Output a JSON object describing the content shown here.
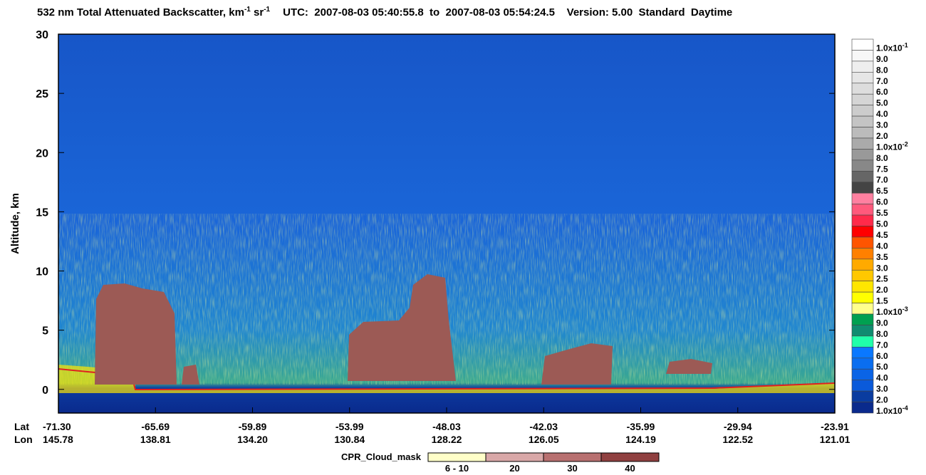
{
  "chart_data": {
    "type": "curtain",
    "title": {
      "main": "532 nm Total Attenuated Backscatter, km",
      "exp1": "-1",
      "sr": " sr",
      "exp2": "-1",
      "info": "UTC:  2007-08-03 05:40:55.8  to  2007-08-03 05:54:24.5    Version: 5.00  Standard  Daytime"
    },
    "ylabel": "Altitude, km",
    "ylim": [
      -2,
      30
    ],
    "yticks": [
      0,
      5,
      10,
      15,
      20,
      25,
      30
    ],
    "x_row_labels": [
      "Lat",
      "Lon"
    ],
    "lat_labels": [
      "-71.30",
      "-65.69",
      "-59.89",
      "-53.99",
      "-48.03",
      "-42.03",
      "-35.99",
      "-29.94",
      "-23.91"
    ],
    "lon_labels": [
      "145.78",
      "138.81",
      "134.20",
      "130.84",
      "128.22",
      "126.05",
      "124.19",
      "122.52",
      "121.01"
    ],
    "colorbar": [
      {
        "label": "1.0x10",
        "exp": "-1",
        "color": "#ffffff"
      },
      {
        "label": "9.0",
        "color": "#f7f7f7"
      },
      {
        "label": "8.0",
        "color": "#eeeeee"
      },
      {
        "label": "7.0",
        "color": "#e6e6e6"
      },
      {
        "label": "6.0",
        "color": "#dddddd"
      },
      {
        "label": "5.0",
        "color": "#d5d5d5"
      },
      {
        "label": "4.0",
        "color": "#cccccc"
      },
      {
        "label": "3.0",
        "color": "#c4c4c4"
      },
      {
        "label": "2.0",
        "color": "#bbbbbb"
      },
      {
        "label": "1.0x10",
        "exp": "-2",
        "color": "#aaaaaa"
      },
      {
        "label": "8.0",
        "color": "#999999"
      },
      {
        "label": "7.5",
        "color": "#888888"
      },
      {
        "label": "7.0",
        "color": "#666666"
      },
      {
        "label": "6.5",
        "color": "#444444"
      },
      {
        "label": "6.0",
        "color": "#ff80a0"
      },
      {
        "label": "5.5",
        "color": "#ff5a7c"
      },
      {
        "label": "5.0",
        "color": "#ff2a4a"
      },
      {
        "label": "4.5",
        "color": "#ff0000"
      },
      {
        "label": "4.0",
        "color": "#ff5500"
      },
      {
        "label": "3.5",
        "color": "#ff8000"
      },
      {
        "label": "3.0",
        "color": "#ffaa00"
      },
      {
        "label": "2.5",
        "color": "#ffc800"
      },
      {
        "label": "2.0",
        "color": "#ffe600"
      },
      {
        "label": "1.5",
        "color": "#ffff00"
      },
      {
        "label": "1.0x10",
        "exp": "-3",
        "color": "#ffff8c"
      },
      {
        "label": "9.0",
        "color": "#00a050"
      },
      {
        "label": "8.0",
        "color": "#108c70"
      },
      {
        "label": "7.0",
        "color": "#20ffaa"
      },
      {
        "label": "6.0",
        "color": "#0a78ff"
      },
      {
        "label": "5.0",
        "color": "#0a6ef0"
      },
      {
        "label": "4.0",
        "color": "#0a64e6"
      },
      {
        "label": "3.0",
        "color": "#0a5ada"
      },
      {
        "label": "2.0",
        "color": "#0a3ca0"
      },
      {
        "label": "1.0x10",
        "exp": "-4",
        "color": "#0a2a8c"
      }
    ],
    "cloud_mask": {
      "title": "CPR_Cloud_mask",
      "labels": [
        "6 - 10",
        "20",
        "30",
        "40"
      ],
      "colors": [
        "#ffffc8",
        "#d9a8a8",
        "#b87070",
        "#904040"
      ]
    }
  }
}
